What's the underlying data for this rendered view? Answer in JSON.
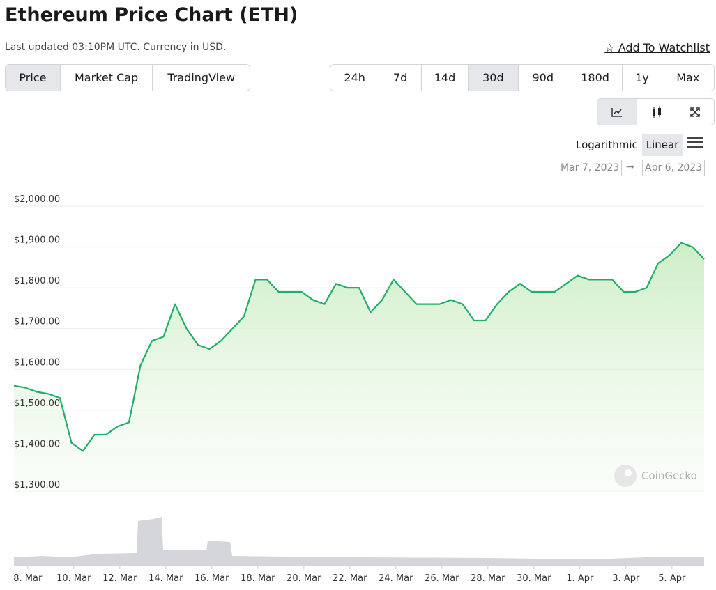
{
  "header": {
    "title": "Ethereum Price Chart (ETH)",
    "subtitle": "Last updated 03:10PM UTC. Currency in USD.",
    "watchlist": "Add To Watchlist"
  },
  "tabs": {
    "items": [
      "Price",
      "Market Cap",
      "TradingView"
    ],
    "active": "Price"
  },
  "ranges": {
    "items": [
      "24h",
      "7d",
      "14d",
      "30d",
      "90d",
      "180d",
      "1y",
      "Max"
    ],
    "active": "30d"
  },
  "scale": {
    "items": [
      "Logarithmic",
      "Linear"
    ],
    "active": "Linear"
  },
  "dates": {
    "from": "Mar 7, 2023",
    "separator": "→",
    "to": "Apr 6, 2023"
  },
  "watermark": "CoinGecko",
  "chart_data": {
    "type": "line",
    "color": "#1fae68",
    "grid": true,
    "values": [
      1560,
      1555,
      1545,
      1540,
      1530,
      1420,
      1400,
      1440,
      1440,
      1460,
      1470,
      1610,
      1670,
      1680,
      1760,
      1700,
      1660,
      1650,
      1670,
      1700,
      1730,
      1820,
      1820,
      1790,
      1790,
      1790,
      1770,
      1760,
      1810,
      1800,
      1800,
      1740,
      1770,
      1820,
      1790,
      1760,
      1760,
      1760,
      1770,
      1760,
      1720,
      1720,
      1760,
      1790,
      1810,
      1790,
      1790,
      1790,
      1810,
      1830,
      1820,
      1820,
      1820,
      1790,
      1790,
      1800,
      1860,
      1880,
      1910,
      1900,
      1870
    ],
    "xlim": [
      0,
      60
    ],
    "xticks": [
      {
        "value": 1.2,
        "label": "8. Mar"
      },
      {
        "value": 5.2,
        "label": "10. Mar"
      },
      {
        "value": 9.2,
        "label": "12. Mar"
      },
      {
        "value": 13.2,
        "label": "14. Mar"
      },
      {
        "value": 17.2,
        "label": "16. Mar"
      },
      {
        "value": 21.2,
        "label": "18. Mar"
      },
      {
        "value": 25.2,
        "label": "20. Mar"
      },
      {
        "value": 29.2,
        "label": "22. Mar"
      },
      {
        "value": 33.2,
        "label": "24. Mar"
      },
      {
        "value": 37.2,
        "label": "26. Mar"
      },
      {
        "value": 41.2,
        "label": "28. Mar"
      },
      {
        "value": 45.2,
        "label": "30. Mar"
      },
      {
        "value": 49.2,
        "label": "1. Apr"
      },
      {
        "value": 53.2,
        "label": "3. Apr"
      },
      {
        "value": 57.2,
        "label": "5. Apr"
      }
    ],
    "ylim": [
      1300,
      2000
    ],
    "yticks": [
      {
        "value": 1300,
        "label": "$1,300.00"
      },
      {
        "value": 1400,
        "label": "$1,400.00"
      },
      {
        "value": 1500,
        "label": "$1,500.00"
      },
      {
        "value": 1600,
        "label": "$1,600.00"
      },
      {
        "value": 1700,
        "label": "$1,700.00"
      },
      {
        "value": 1800,
        "label": "$1,800.00"
      },
      {
        "value": 1900,
        "label": "$1,900.00"
      },
      {
        "value": 2000,
        "label": "$2,000.00"
      }
    ]
  }
}
